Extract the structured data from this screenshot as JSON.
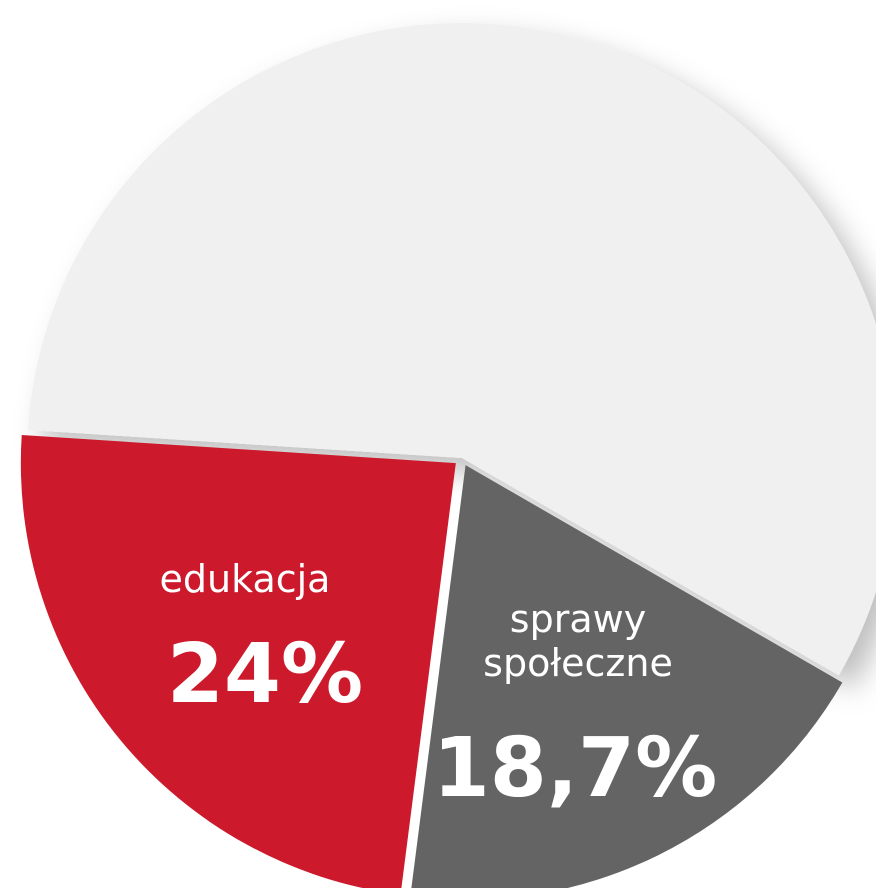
{
  "chart_data": {
    "type": "pie",
    "categories": [
      "edukacja",
      "sprawy społeczne",
      null
    ],
    "values": [
      24,
      18.7,
      57.3
    ],
    "value_labels": [
      "24%",
      "18,7%",
      null
    ],
    "colors": [
      "#cc1a2c",
      "#646464",
      "#f0f0f0"
    ]
  }
}
